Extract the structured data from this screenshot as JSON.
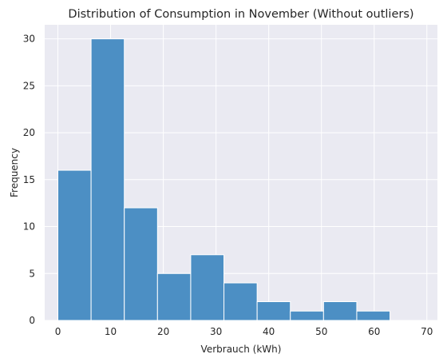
{
  "chart_data": {
    "type": "bar",
    "subtype": "histogram",
    "title": "Distribution of Consumption in November (Without outliers)",
    "xlabel": "Verbrauch (kWh)",
    "ylabel": "Frequency",
    "xlim": [
      -2.5,
      72
    ],
    "ylim": [
      0,
      31.5
    ],
    "xticks": [
      0,
      10,
      20,
      30,
      40,
      50,
      60,
      70
    ],
    "yticks": [
      0,
      5,
      10,
      15,
      20,
      25,
      30
    ],
    "bin_edges": [
      0,
      6.3,
      12.6,
      18.9,
      25.2,
      31.5,
      37.8,
      44.1,
      50.4,
      56.7,
      63.0
    ],
    "values": [
      16,
      30,
      12,
      5,
      7,
      4,
      2,
      1,
      2,
      1
    ],
    "grid": true,
    "colors": {
      "bar": "#4c8fc4",
      "background": "#eaeaf2",
      "grid": "#ffffff"
    }
  }
}
